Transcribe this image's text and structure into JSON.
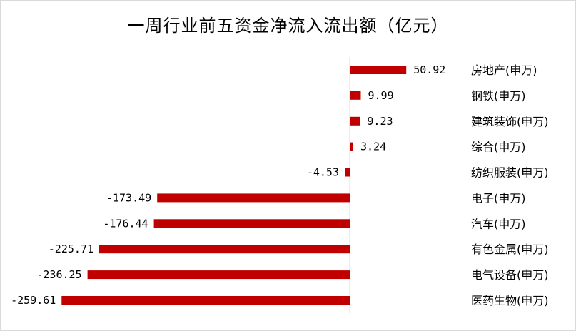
{
  "chart_data": {
    "type": "bar",
    "orientation": "horizontal",
    "title": "一周行业前五资金净流入流出额（亿元）",
    "categories": [
      "房地产(申万)",
      "钢铁(申万)",
      "建筑装饰(申万)",
      "综合(申万)",
      "纺织服装(申万)",
      "电子(申万)",
      "汽车(申万)",
      "有色金属(申万)",
      "电气设备(申万)",
      "医药生物(申万)"
    ],
    "values": [
      50.92,
      9.99,
      9.23,
      3.24,
      -4.53,
      -173.49,
      -176.44,
      -225.71,
      -236.25,
      -259.61
    ],
    "value_labels": [
      "50.92",
      "9.99",
      "9.23",
      "3.24",
      "-4.53",
      "-173.49",
      "-176.44",
      "-225.71",
      "-236.25",
      "-259.61"
    ],
    "bar_color": "#C00000",
    "grid": false,
    "legend": "none"
  }
}
